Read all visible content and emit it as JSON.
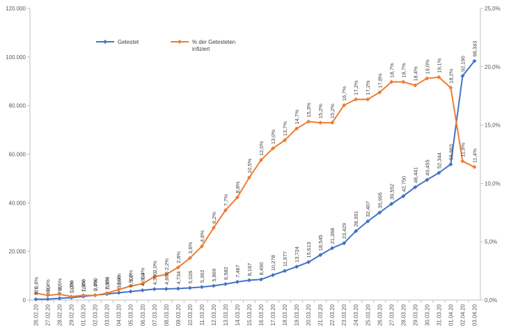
{
  "chart_data": {
    "type": "line",
    "categories": [
      "26.02.20",
      "27.02.20",
      "28.02.20",
      "29.02.20",
      "01.03.20",
      "02.03.20",
      "03.03.20",
      "04.03.20",
      "05.03.20",
      "06.03.20",
      "07.03.20",
      "08.03.20",
      "09.03.20",
      "10.03.20",
      "11.03.20",
      "12.03.20",
      "13.03.20",
      "14.03.20",
      "15.03.20",
      "16.03.20",
      "17.03.20",
      "18.03.20",
      "19.03.20",
      "20.03.20",
      "21.03.20",
      "22.03.20",
      "23.03.20",
      "24.03.20",
      "25.03.20",
      "26.03.20",
      "27.03.20",
      "28.03.20",
      "29.03.20",
      "30.03.20",
      "31.03.20",
      "01.04.20",
      "02.04.20",
      "03.04.20"
    ],
    "series": [
      {
        "name": "Getestet",
        "axis": "left",
        "color": "#4472C4",
        "values": [
          321,
          400,
          700,
          1000,
          1500,
          2000,
          2500,
          3000,
          3500,
          4000,
          4500,
          4600,
          4734,
          5026,
          5362,
          5869,
          6582,
          7467,
          8167,
          8490,
          10278,
          11977,
          13724,
          15613,
          18545,
          21368,
          23429,
          28391,
          32407,
          35995,
          39552,
          42750,
          46441,
          49455,
          52344,
          55863,
          92190,
          98343
        ],
        "labels": [
          "321",
          "400",
          "700",
          "1,000",
          "1,500",
          "2,000",
          "2,500",
          "3,000",
          "3,500",
          "4,000",
          "4,500",
          "4,600",
          "4,734",
          "5,026",
          "5,362",
          "5,869",
          "6,582",
          "7,467",
          "8,167",
          "8,490",
          "10,278",
          "11,977",
          "13,724",
          "15,613",
          "18,545",
          "21,368",
          "23,429",
          "28,391",
          "32,407",
          "35,995",
          "39,552",
          "42,750",
          "46,441",
          "49,455",
          "52,344",
          "55,863",
          "92,190",
          "98,343"
        ]
      },
      {
        "name": "% der Getesteten infiziert",
        "axis": "right",
        "color": "#ED7D31",
        "values": [
          0.6,
          0.4,
          0.5,
          0.3,
          0.4,
          0.4,
          0.6,
          0.9,
          1.2,
          1.4,
          2.0,
          2.2,
          2.8,
          3.6,
          4.6,
          6.2,
          7.7,
          8.8,
          10.5,
          12.0,
          13.0,
          13.7,
          14.7,
          15.3,
          15.2,
          15.2,
          16.7,
          17.2,
          17.2,
          17.8,
          18.7,
          18.7,
          18.4,
          19.0,
          19.1,
          18.2,
          11.9,
          11.4
        ],
        "labels": [
          "0,6%",
          "0,4%",
          "0,5%",
          "0,3%",
          "0,4%",
          "0,4%",
          "0,6%",
          "0,9%",
          "1,2%",
          "1,4%",
          "2,0%",
          "2,2%",
          "2,8%",
          "3,6%",
          "4,6%",
          "6,2%",
          "7,7%",
          "8,8%",
          "10,5%",
          "12,0%",
          "13,0%",
          "13,7%",
          "14,7%",
          "15,3%",
          "15,2%",
          "15,2%",
          "16,7%",
          "17,2%",
          "17,2%",
          "17,8%",
          "18,7%",
          "18,7%",
          "18,4%",
          "19,0%",
          "19,1%",
          "18,2%",
          "11,9%",
          "11,4%"
        ]
      }
    ],
    "y_left": {
      "range": [
        0,
        120000
      ],
      "ticks": [
        0,
        20000,
        40000,
        60000,
        80000,
        100000,
        120000
      ],
      "tick_labels": [
        "0",
        "20.000",
        "40.000",
        "60.000",
        "80.000",
        "100.000",
        "120.000"
      ]
    },
    "y_right": {
      "range": [
        0,
        25
      ],
      "ticks": [
        0,
        5,
        10,
        15,
        20,
        25
      ],
      "tick_labels": [
        "0,0%",
        "5,0%",
        "10,0%",
        "15,0%",
        "20,0%",
        "25,0%"
      ]
    },
    "title": "",
    "xlabel": "",
    "ylabel": "",
    "grid": false,
    "legend_position": "top-left"
  }
}
